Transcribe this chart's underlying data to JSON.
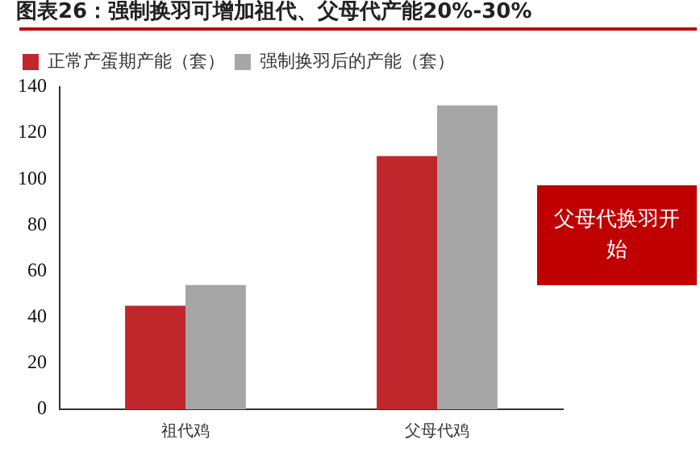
{
  "chart_data": {
    "type": "bar",
    "title": "图表26：强制换羽可增加祖代、父母代产能20%-30%",
    "categories": [
      "祖代鸡",
      "父母代鸡"
    ],
    "series": [
      {
        "name": "正常产蛋期产能（套）",
        "color": "#c0272d",
        "values": [
          45,
          110
        ]
      },
      {
        "name": "强制换羽后的产能（套）",
        "color": "#a6a6a6",
        "values": [
          54,
          132
        ]
      }
    ],
    "ylim": [
      0,
      140
    ],
    "yticks": [
      0,
      20,
      40,
      60,
      80,
      100,
      120,
      140
    ],
    "grid": false,
    "legend": "top left",
    "annotations": [
      "父母代换羽开始"
    ]
  }
}
